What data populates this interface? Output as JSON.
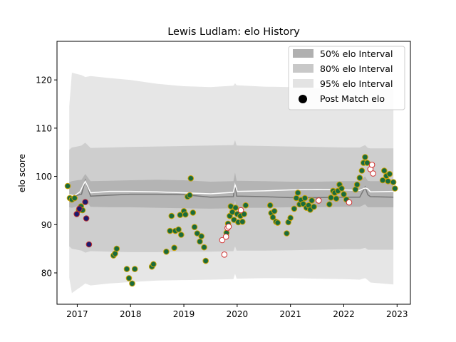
{
  "chart_data": {
    "type": "scatter",
    "title": "Lewis Ludlam: elo History",
    "xlabel": "",
    "ylabel": "elo score",
    "xlim": [
      2016.62,
      2023.25
    ],
    "ylim": [
      73.5,
      128.0
    ],
    "x_ticks": [
      {
        "value": 2017,
        "label": "2017"
      },
      {
        "value": 2018,
        "label": "2018"
      },
      {
        "value": 2019,
        "label": "2019"
      },
      {
        "value": 2020,
        "label": "2020"
      },
      {
        "value": 2021,
        "label": "2021"
      },
      {
        "value": 2022,
        "label": "2022"
      },
      {
        "value": 2023,
        "label": "2023"
      }
    ],
    "y_ticks": [
      80,
      90,
      100,
      110,
      120
    ],
    "grid": false,
    "legend_position": "top-right",
    "legend": [
      {
        "label": "50% elo Interval",
        "kind": "patch",
        "color": "#b0b0b0"
      },
      {
        "label": "80% elo Interval",
        "kind": "patch",
        "color": "#c8c8c8"
      },
      {
        "label": "95% elo Interval",
        "kind": "patch",
        "color": "#e3e3e3"
      },
      {
        "label": "Post Match elo",
        "kind": "marker",
        "color": "#000000"
      }
    ],
    "bands": {
      "x": [
        2016.85,
        2016.9,
        2017.0,
        2017.08,
        2017.15,
        2017.25,
        2017.6,
        2018.0,
        2018.5,
        2019.0,
        2019.5,
        2019.93,
        2019.96,
        2019.99,
        2020.5,
        2021.0,
        2021.5,
        2022.0,
        2022.3,
        2022.4,
        2022.45,
        2022.5,
        2022.93
      ],
      "center": [
        95.6,
        95.4,
        96.1,
        96.3,
        99.2,
        95.9,
        96.1,
        96.3,
        96.3,
        96.2,
        95.7,
        95.8,
        98.5,
        95.9,
        95.8,
        95.6,
        95.6,
        95.7,
        95.7,
        97.8,
        96.2,
        95.8,
        95.7
      ],
      "upper50": [
        98.8,
        99.0,
        99.2,
        99.3,
        100.5,
        99.0,
        99.1,
        99.2,
        99.3,
        99.2,
        98.9,
        99.0,
        100.8,
        99.1,
        99.0,
        98.9,
        98.9,
        99.0,
        99.0,
        100.0,
        99.1,
        99.0,
        99.0
      ],
      "lower50": [
        93.6,
        93.5,
        93.8,
        93.9,
        95.0,
        93.7,
        93.6,
        93.6,
        93.5,
        93.4,
        93.3,
        93.4,
        95.0,
        93.5,
        93.5,
        93.6,
        93.6,
        93.7,
        93.7,
        94.2,
        93.6,
        93.6,
        93.6
      ],
      "upper80": [
        105.5,
        106.0,
        106.2,
        106.4,
        107.0,
        105.9,
        106.0,
        106.1,
        106.2,
        106.3,
        106.4,
        106.5,
        107.5,
        106.4,
        106.3,
        106.2,
        106.1,
        106.0,
        106.0,
        106.5,
        105.9,
        105.8,
        105.8
      ],
      "lower80": [
        85.5,
        85.0,
        84.8,
        84.6,
        84.2,
        84.5,
        84.4,
        84.3,
        84.3,
        84.4,
        84.4,
        84.5,
        85.5,
        84.6,
        84.6,
        84.7,
        84.8,
        84.9,
        84.9,
        85.2,
        84.8,
        84.8,
        84.8
      ],
      "upper95": [
        114.5,
        121.5,
        121.2,
        121.0,
        120.6,
        120.8,
        120.4,
        120.0,
        119.2,
        118.7,
        118.5,
        118.8,
        119.3,
        118.9,
        118.6,
        118.5,
        118.3,
        118.2,
        118.5,
        118.7,
        118.5,
        118.2,
        118.2
      ],
      "lower95": [
        79.0,
        75.8,
        76.6,
        77.2,
        77.8,
        77.4,
        77.8,
        78.1,
        78.4,
        78.5,
        78.6,
        78.7,
        79.8,
        78.8,
        78.9,
        78.9,
        78.8,
        78.7,
        78.6,
        78.9,
        78.5,
        78.0,
        77.6
      ],
      "band_colors": {
        "outer95": "#e6e6e6",
        "mid80": "#cecece",
        "inner50": "#b4b4b4",
        "center_line": "#777777"
      }
    },
    "white_line": {
      "x": [
        2016.85,
        2016.95,
        2017.05,
        2017.15,
        2017.25,
        2017.6,
        2018.0,
        2018.5,
        2019.0,
        2019.5,
        2019.93,
        2019.96,
        2020.0,
        2020.5,
        2021.0,
        2021.5,
        2022.0,
        2022.3,
        2022.4,
        2022.45,
        2022.5,
        2022.93
      ],
      "y": [
        96.2,
        96.0,
        96.8,
        99.0,
        96.6,
        96.9,
        96.9,
        96.8,
        96.6,
        96.4,
        96.7,
        98.3,
        96.9,
        97.0,
        97.2,
        97.3,
        97.2,
        97.1,
        97.6,
        97.4,
        96.8,
        96.9
      ]
    },
    "series": [
      {
        "style": "green-win",
        "fill": "#1a6b3c",
        "stroke": "#c8a000",
        "points": [
          [
            2016.82,
            98.0
          ],
          [
            2016.86,
            95.5
          ],
          [
            2016.9,
            95.2
          ],
          [
            2016.95,
            95.5
          ],
          [
            2017.03,
            93.0
          ],
          [
            2017.07,
            93.8
          ],
          [
            2017.1,
            93.0
          ],
          [
            2017.68,
            83.6
          ],
          [
            2017.71,
            84.0
          ],
          [
            2017.74,
            85.0
          ],
          [
            2017.93,
            80.8
          ],
          [
            2017.97,
            78.9
          ],
          [
            2018.03,
            77.8
          ],
          [
            2018.08,
            80.8
          ],
          [
            2018.4,
            81.3
          ],
          [
            2018.43,
            81.8
          ],
          [
            2018.67,
            84.4
          ],
          [
            2018.74,
            88.7
          ],
          [
            2018.77,
            91.8
          ],
          [
            2018.82,
            85.2
          ],
          [
            2018.84,
            88.7
          ],
          [
            2018.9,
            89.0
          ],
          [
            2018.93,
            92.0
          ],
          [
            2018.95,
            87.9
          ],
          [
            2019.0,
            92.8
          ],
          [
            2019.03,
            92.1
          ],
          [
            2019.07,
            95.8
          ],
          [
            2019.11,
            96.1
          ],
          [
            2019.13,
            99.6
          ],
          [
            2019.17,
            92.5
          ],
          [
            2019.2,
            89.5
          ],
          [
            2019.25,
            88.2
          ],
          [
            2019.3,
            86.5
          ],
          [
            2019.33,
            87.6
          ],
          [
            2019.38,
            85.3
          ],
          [
            2019.41,
            82.5
          ],
          [
            2019.8,
            88.3
          ],
          [
            2019.83,
            90.2
          ],
          [
            2019.86,
            91.8
          ],
          [
            2019.88,
            93.8
          ],
          [
            2019.91,
            92.6
          ],
          [
            2019.94,
            91.0
          ],
          [
            2019.97,
            93.5
          ],
          [
            2020.0,
            92.2
          ],
          [
            2020.02,
            90.5
          ],
          [
            2020.06,
            91.8
          ],
          [
            2020.1,
            90.6
          ],
          [
            2020.13,
            92.2
          ],
          [
            2020.16,
            94.0
          ],
          [
            2020.62,
            94.0
          ],
          [
            2020.64,
            92.4
          ],
          [
            2020.67,
            91.5
          ],
          [
            2020.7,
            92.8
          ],
          [
            2020.73,
            90.6
          ],
          [
            2020.76,
            90.4
          ],
          [
            2020.93,
            88.2
          ],
          [
            2020.96,
            90.5
          ],
          [
            2021.0,
            91.4
          ],
          [
            2021.07,
            93.3
          ],
          [
            2021.11,
            95.5
          ],
          [
            2021.14,
            96.6
          ],
          [
            2021.17,
            94.2
          ],
          [
            2021.2,
            95.1
          ],
          [
            2021.24,
            94.3
          ],
          [
            2021.27,
            95.5
          ],
          [
            2021.3,
            93.5
          ],
          [
            2021.34,
            94.0
          ],
          [
            2021.37,
            93.1
          ],
          [
            2021.4,
            95.0
          ],
          [
            2021.44,
            93.7
          ],
          [
            2021.73,
            94.2
          ],
          [
            2021.76,
            95.6
          ],
          [
            2021.8,
            97.0
          ],
          [
            2021.83,
            96.6
          ],
          [
            2021.86,
            95.4
          ],
          [
            2021.89,
            97.0
          ],
          [
            2021.92,
            98.3
          ],
          [
            2021.96,
            97.5
          ],
          [
            2022.0,
            96.3
          ],
          [
            2022.05,
            95.2
          ],
          [
            2022.22,
            97.3
          ],
          [
            2022.25,
            98.3
          ],
          [
            2022.3,
            99.7
          ],
          [
            2022.34,
            101.2
          ],
          [
            2022.37,
            102.8
          ],
          [
            2022.4,
            104.0
          ],
          [
            2022.44,
            102.8
          ],
          [
            2022.73,
            99.2
          ],
          [
            2022.76,
            101.2
          ],
          [
            2022.8,
            100.1
          ],
          [
            2022.83,
            99.0
          ],
          [
            2022.86,
            100.5
          ],
          [
            2022.93,
            98.8
          ],
          [
            2022.96,
            97.5
          ]
        ]
      },
      {
        "style": "white-loss",
        "fill": "#ffffff",
        "stroke": "#d03030",
        "points": [
          [
            2019.72,
            86.8
          ],
          [
            2019.76,
            83.8
          ],
          [
            2019.79,
            87.5
          ],
          [
            2019.82,
            89.3
          ],
          [
            2019.84,
            89.6
          ],
          [
            2020.07,
            93.0
          ],
          [
            2021.53,
            95.0
          ],
          [
            2022.1,
            94.6
          ],
          [
            2022.5,
            101.5
          ],
          [
            2022.53,
            102.4
          ],
          [
            2022.55,
            100.6
          ]
        ]
      },
      {
        "style": "navy",
        "fill": "#1b1b6e",
        "stroke": "#c03030",
        "points": [
          [
            2016.99,
            92.2
          ],
          [
            2017.04,
            93.3
          ],
          [
            2017.15,
            94.7
          ],
          [
            2017.17,
            91.3
          ],
          [
            2017.22,
            85.9
          ]
        ]
      }
    ]
  }
}
